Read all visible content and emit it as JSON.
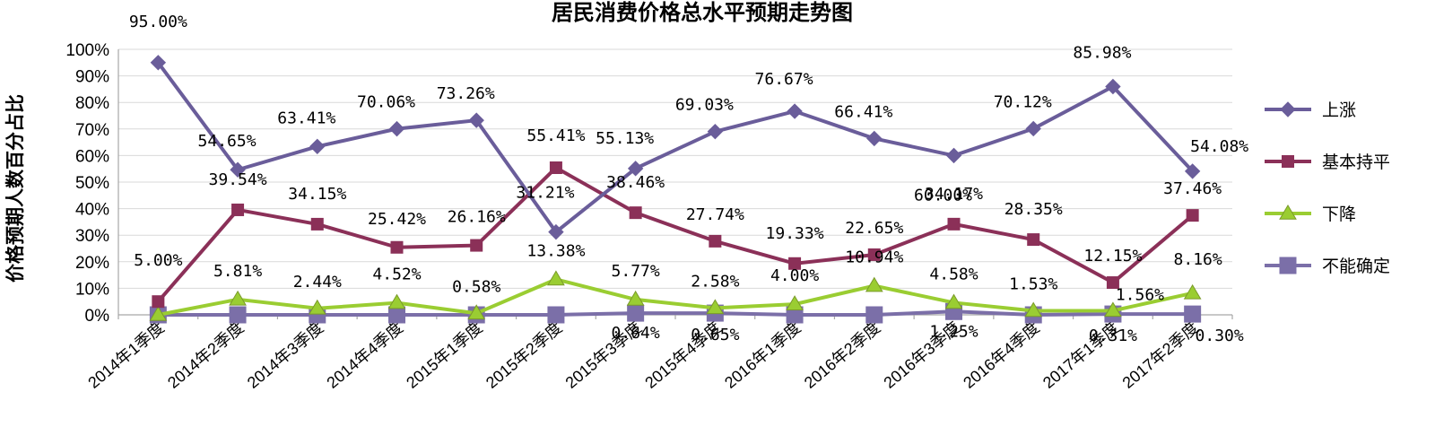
{
  "chart_data": {
    "type": "line",
    "title": "居民消费价格总水平预期走势图",
    "xlabel": "",
    "ylabel": "价格预期人数百分占比",
    "ylim": [
      0,
      100
    ],
    "y_ticks": [
      "0%",
      "10%",
      "20%",
      "30%",
      "40%",
      "50%",
      "60%",
      "70%",
      "80%",
      "90%",
      "100%"
    ],
    "grid": true,
    "legend_position": "right",
    "categories": [
      "2014年1季度",
      "2014年2季度",
      "2014年3季度",
      "2014年4季度",
      "2015年1季度",
      "2015年2季度",
      "2015年3季度",
      "2015年4季度",
      "2016年1季度",
      "2016年2季度",
      "2016年3季度",
      "2016年4季度",
      "2017年1季度",
      "2017年2季度"
    ],
    "series": [
      {
        "name": "上涨",
        "color": "#6a5d9a",
        "marker": "diamond",
        "values": [
          95.0,
          54.65,
          63.41,
          70.06,
          73.26,
          31.21,
          55.13,
          69.03,
          76.67,
          66.41,
          60.0,
          70.12,
          85.98,
          54.08
        ],
        "labels": [
          "95.00%",
          "54.65%",
          "63.41%",
          "70.06%",
          "73.26%",
          "31.21%",
          "55.13%",
          "69.03%",
          "76.67%",
          "66.41%",
          "60.00%",
          "70.12%",
          "85.98%",
          "54.08%"
        ]
      },
      {
        "name": "基本持平",
        "color": "#8b3058",
        "marker": "square",
        "values": [
          5.0,
          39.54,
          34.15,
          25.42,
          26.16,
          55.41,
          38.46,
          27.74,
          19.33,
          22.65,
          34.17,
          28.35,
          12.15,
          37.46
        ],
        "labels": [
          "5.00%",
          "39.54%",
          "34.15%",
          "25.42%",
          "26.16%",
          "55.41%",
          "38.46%",
          "27.74%",
          "19.33%",
          "22.65%",
          "34.17%",
          "28.35%",
          "12.15%",
          "37.46%"
        ]
      },
      {
        "name": "下降",
        "color": "#9acd32",
        "marker": "triangle",
        "values": [
          0.0,
          5.81,
          2.44,
          4.52,
          0.58,
          13.38,
          5.77,
          2.58,
          4.0,
          10.94,
          4.58,
          1.53,
          1.56,
          8.16
        ],
        "labels": [
          "",
          "5.81%",
          "2.44%",
          "4.52%",
          "0.58%",
          "13.38%",
          "5.77%",
          "2.58%",
          "4.00%",
          "10.94%",
          "4.58%",
          "1.53%",
          "1.56%",
          "8.16%"
        ]
      },
      {
        "name": "不能确定",
        "color": "#7b6fa8",
        "marker": "bigsquare",
        "values": [
          0.0,
          0.0,
          0.0,
          0.0,
          0.0,
          0.0,
          0.64,
          0.65,
          0.0,
          0.0,
          1.25,
          0.0,
          0.31,
          0.3
        ],
        "labels": [
          "",
          "",
          "",
          "",
          "",
          "",
          "0.64%",
          "0.65%",
          "",
          "",
          "1.25%",
          "",
          "0.31%",
          "0.30%"
        ]
      }
    ]
  }
}
